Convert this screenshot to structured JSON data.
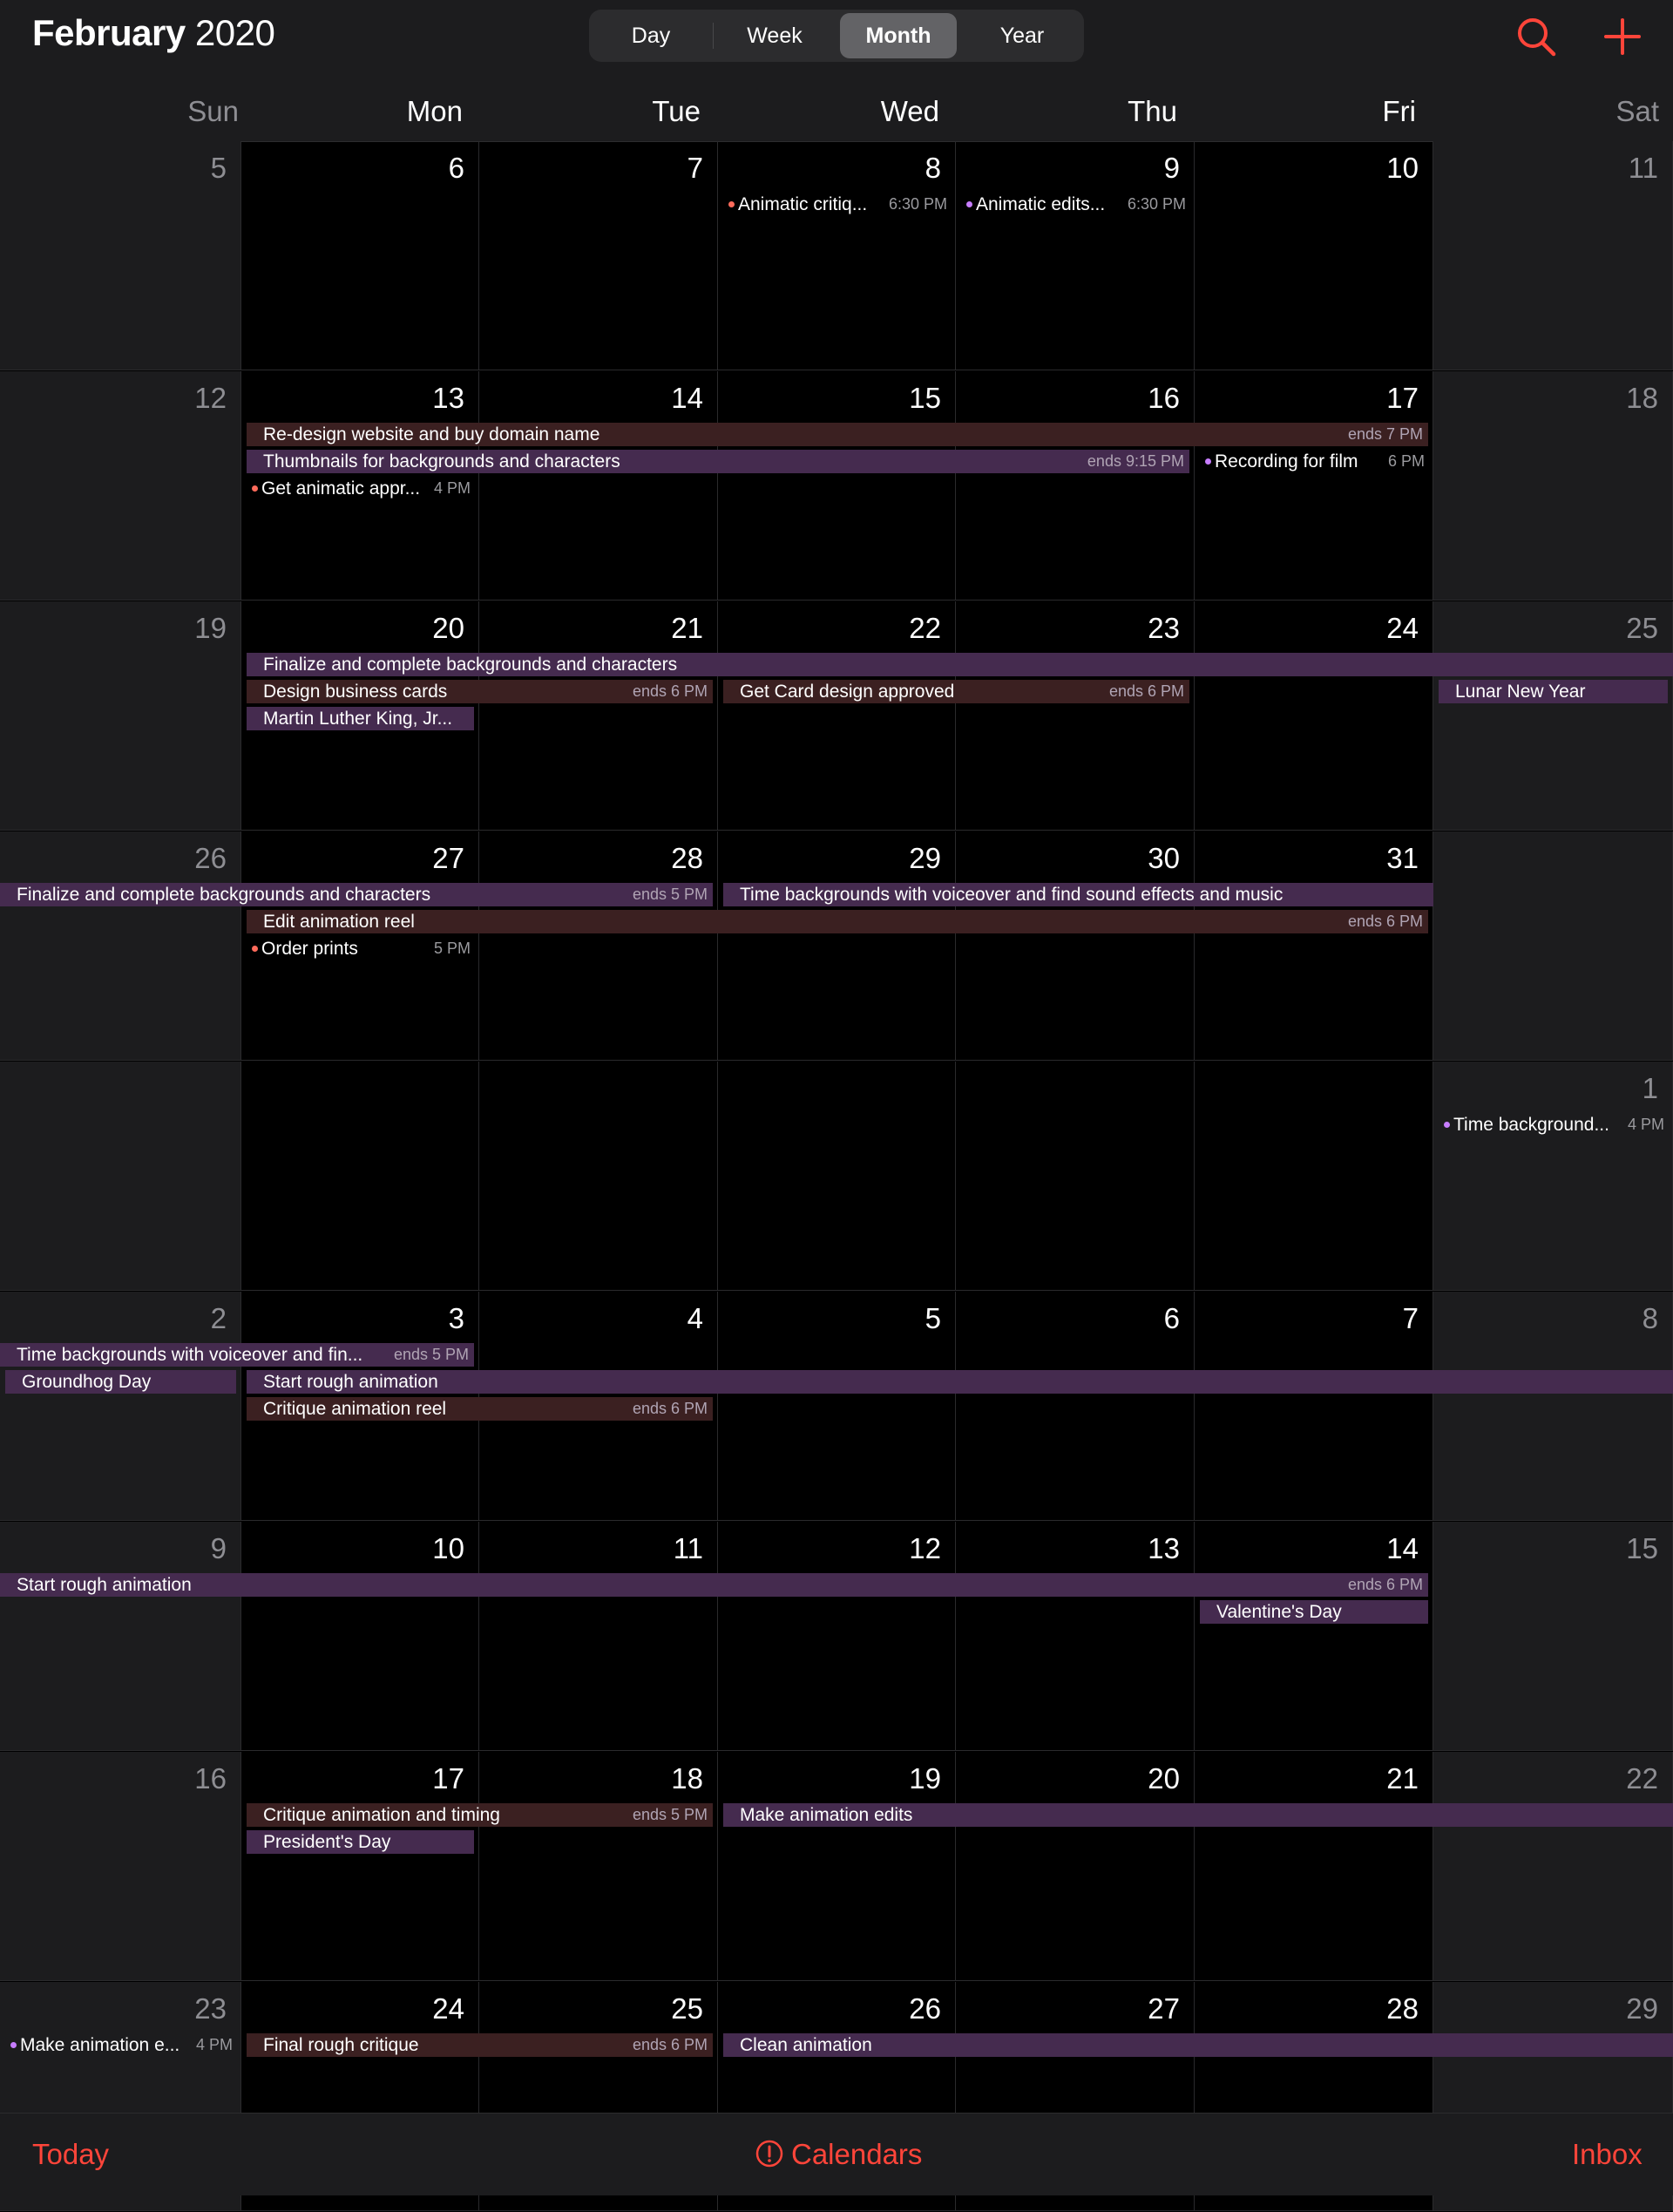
{
  "header": {
    "month": "February",
    "year": "2020",
    "segments": [
      "Day",
      "Week",
      "Month",
      "Year"
    ],
    "active_segment": "Month",
    "accent": "#ff453a"
  },
  "weekdays": [
    "Sun",
    "Mon",
    "Tue",
    "Wed",
    "Thu",
    "Fri",
    "Sat"
  ],
  "weeks": [
    {
      "days": [
        "5",
        "6",
        "7",
        "8",
        "9",
        "10",
        "11"
      ],
      "bars": [],
      "events": [
        {
          "col": 3,
          "lane": 0,
          "title": "Animatic critiq...",
          "time": "6:30 PM",
          "dot": "#ff6b5b"
        },
        {
          "col": 4,
          "lane": 0,
          "title": "Animatic edits...",
          "time": "6:30 PM",
          "dot": "#c77dff"
        }
      ]
    },
    {
      "days": [
        "12",
        "13",
        "14",
        "15",
        "16",
        "17",
        "18"
      ],
      "bars": [
        {
          "start": 1,
          "span": 5,
          "lane": 0,
          "title": "Re-design website and buy domain name",
          "ends": "ends 7 PM",
          "color": "red"
        },
        {
          "start": 1,
          "span": 4,
          "lane": 1,
          "title": "Thumbnails for backgrounds and characters",
          "ends": "ends 9:15 PM",
          "color": "purple"
        }
      ],
      "events": [
        {
          "col": 5,
          "lane": 1,
          "title": "Recording for film",
          "time": "6 PM",
          "dot": "#c77dff"
        },
        {
          "col": 1,
          "lane": 2,
          "title": "Get animatic appr...",
          "time": "4 PM",
          "dot": "#ff6b5b"
        }
      ]
    },
    {
      "days": [
        "19",
        "20",
        "21",
        "22",
        "23",
        "24",
        "25"
      ],
      "bars": [
        {
          "start": 1,
          "span": 6,
          "lane": 0,
          "title": "Finalize and complete backgrounds and characters",
          "ends": "",
          "color": "purple",
          "open_end": true
        },
        {
          "start": 1,
          "span": 2,
          "lane": 1,
          "title": "Design business cards",
          "ends": "ends 6 PM",
          "color": "red"
        },
        {
          "start": 3,
          "span": 2,
          "lane": 1,
          "title": "Get Card design approved",
          "ends": "ends 6 PM",
          "color": "red"
        },
        {
          "start": 6,
          "span": 1,
          "lane": 1,
          "title": "Lunar New Year",
          "ends": "",
          "color": "purple"
        },
        {
          "start": 1,
          "span": 1,
          "lane": 2,
          "title": "Martin Luther King, Jr...",
          "ends": "",
          "color": "purple"
        }
      ],
      "events": []
    },
    {
      "days": [
        "26",
        "27",
        "28",
        "29",
        "30",
        "31",
        ""
      ],
      "bars": [
        {
          "start": 0,
          "span": 3,
          "lane": 0,
          "title": "Finalize and complete backgrounds and characters",
          "ends": "ends 5 PM",
          "color": "purple",
          "open_start": true
        },
        {
          "start": 3,
          "span": 3,
          "lane": 0,
          "title": "Time backgrounds with voiceover and find sound effects and music",
          "ends": "",
          "color": "purple",
          "open_end": true
        },
        {
          "start": 1,
          "span": 5,
          "lane": 1,
          "title": "Edit animation reel",
          "ends": "ends 6 PM",
          "color": "red"
        }
      ],
      "events": [
        {
          "col": 1,
          "lane": 2,
          "title": "Order prints",
          "time": "5 PM",
          "dot": "#ff6b5b"
        }
      ]
    },
    {
      "days": [
        "",
        "",
        "",
        "",
        "",
        "",
        "1"
      ],
      "bars": [],
      "events": [
        {
          "col": 6,
          "lane": 0,
          "title": "Time background...",
          "time": "4 PM",
          "dot": "#c77dff"
        }
      ]
    },
    {
      "days": [
        "2",
        "3",
        "4",
        "5",
        "6",
        "7",
        "8"
      ],
      "bars": [
        {
          "start": 0,
          "span": 2,
          "lane": 0,
          "title": "Time backgrounds with voiceover and fin...",
          "ends": "ends 5 PM",
          "color": "purple",
          "open_start": true
        },
        {
          "start": 0,
          "span": 1,
          "lane": 1,
          "title": "Groundhog Day",
          "ends": "",
          "color": "purple"
        },
        {
          "start": 1,
          "span": 6,
          "lane": 1,
          "title": "Start rough animation",
          "ends": "",
          "color": "purple",
          "open_end": true
        },
        {
          "start": 1,
          "span": 2,
          "lane": 2,
          "title": "Critique animation reel",
          "ends": "ends 6 PM",
          "color": "red"
        }
      ],
      "events": []
    },
    {
      "days": [
        "9",
        "10",
        "11",
        "12",
        "13",
        "14",
        "15"
      ],
      "bars": [
        {
          "start": 0,
          "span": 6,
          "lane": 0,
          "title": "Start rough animation",
          "ends": "ends 6 PM",
          "color": "purple",
          "open_start": true
        },
        {
          "start": 5,
          "span": 1,
          "lane": 1,
          "title": "Valentine's Day",
          "ends": "",
          "color": "purple"
        }
      ],
      "events": []
    },
    {
      "days": [
        "16",
        "17",
        "18",
        "19",
        "20",
        "21",
        "22"
      ],
      "bars": [
        {
          "start": 1,
          "span": 2,
          "lane": 0,
          "title": "Critique animation and timing",
          "ends": "ends 5 PM",
          "color": "red"
        },
        {
          "start": 3,
          "span": 4,
          "lane": 0,
          "title": "Make animation edits",
          "ends": "",
          "color": "purple",
          "open_end": true
        },
        {
          "start": 1,
          "span": 1,
          "lane": 1,
          "title": "President's Day",
          "ends": "",
          "color": "purple"
        }
      ],
      "events": []
    },
    {
      "days": [
        "23",
        "24",
        "25",
        "26",
        "27",
        "28",
        "29"
      ],
      "bars": [
        {
          "start": 1,
          "span": 2,
          "lane": 0,
          "title": "Final rough critique",
          "ends": "ends 6 PM",
          "color": "red"
        },
        {
          "start": 3,
          "span": 4,
          "lane": 0,
          "title": "Clean animation",
          "ends": "",
          "color": "purple",
          "open_end": true
        }
      ],
      "events": [
        {
          "col": 0,
          "lane": 0,
          "title": "Make animation e...",
          "time": "4 PM",
          "dot": "#c77dff"
        }
      ]
    }
  ],
  "footer": {
    "today": "Today",
    "calendars": "Calendars",
    "inbox": "Inbox"
  }
}
